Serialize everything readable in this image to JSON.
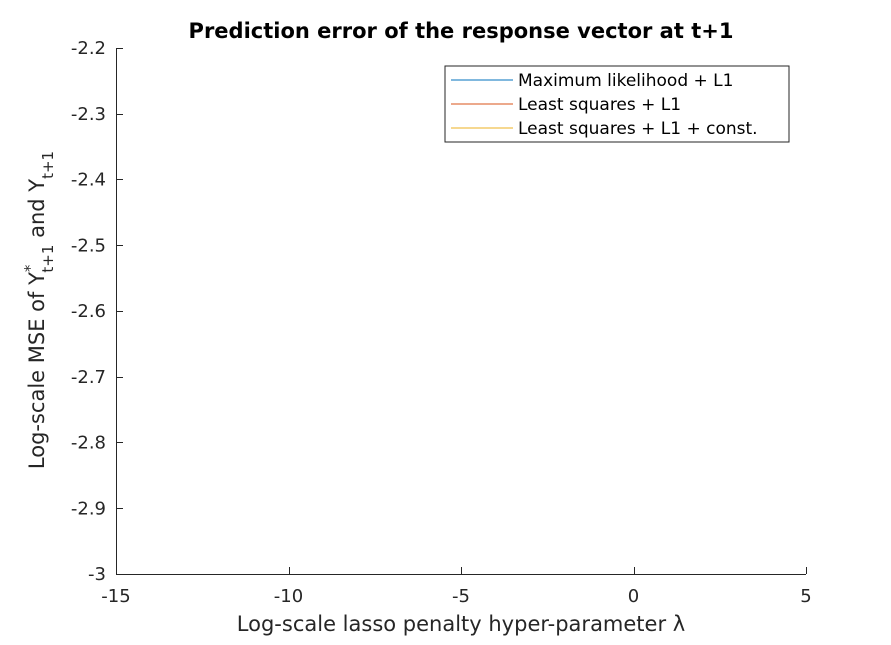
{
  "chart_data": {
    "type": "line",
    "title": "Prediction error of the response vector at t+1",
    "xlabel": "Log-scale lasso penalty hyper-parameter λ",
    "ylabel": {
      "prefix": "Log-scale MSE of Y",
      "sup1": "*",
      "sub1": "t+1",
      "middle": " and Y",
      "sub2": "t+1"
    },
    "xlim": [
      -15,
      5
    ],
    "ylim": [
      -3,
      -2.2
    ],
    "xticks": [
      -15,
      -10,
      -5,
      0,
      5
    ],
    "xtick_labels": [
      "-15",
      "-10",
      "-5",
      "0",
      "5"
    ],
    "yticks": [
      -3,
      -2.9,
      -2.8,
      -2.7,
      -2.6,
      -2.5,
      -2.4,
      -2.3,
      -2.2
    ],
    "ytick_labels": [
      "-3",
      "-2.9",
      "-2.8",
      "-2.7",
      "-2.6",
      "-2.5",
      "-2.4",
      "-2.3",
      "-2.2"
    ],
    "grid": false,
    "legend_position": "top-right",
    "series": [
      {
        "name": "Maximum likelihood + L1",
        "color": "#0072BD",
        "x": [],
        "y": []
      },
      {
        "name": "Least squares + L1",
        "color": "#D95319",
        "x": [],
        "y": []
      },
      {
        "name": "Least squares + L1 + const.",
        "color": "#EDB120",
        "x": [],
        "y": []
      }
    ]
  }
}
